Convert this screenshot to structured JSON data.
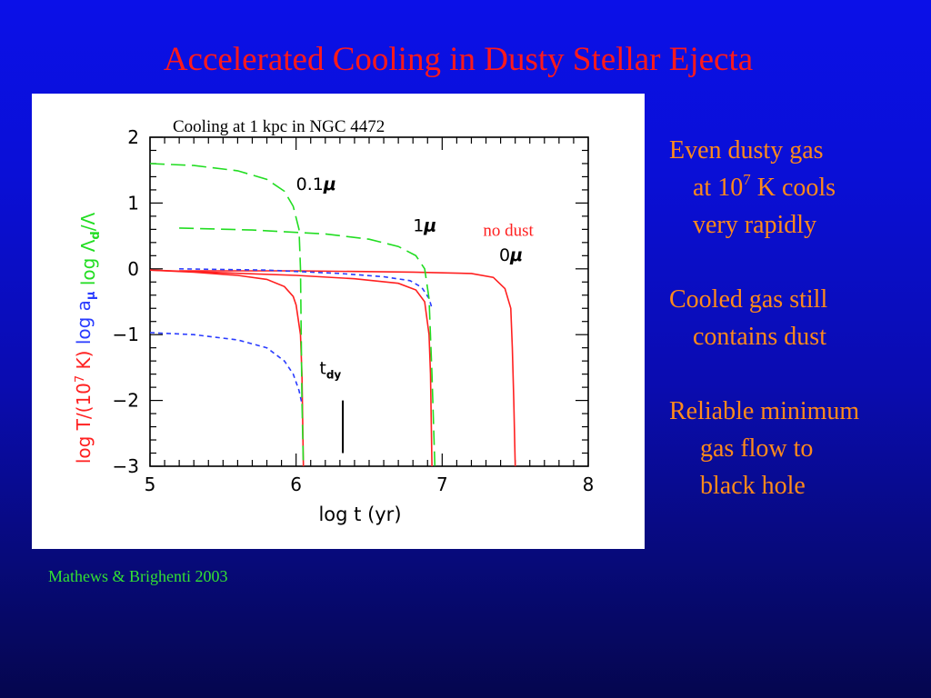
{
  "slide": {
    "title": "Accelerated Cooling in Dusty Stellar Ejecta",
    "citation": "Mathews & Brighenti 2003",
    "bullets": [
      {
        "lines": [
          "Even dusty gas",
          "at 10",
          "very rapidly"
        ],
        "sup": "7",
        "sup_tail": " K cools"
      },
      {
        "lines": [
          "Cooled gas still",
          "contains dust"
        ]
      },
      {
        "lines": [
          "Reliable minimum",
          "gas flow to",
          "black hole"
        ]
      }
    ],
    "colors": {
      "title": "#ff1a1a",
      "bullets": "#ff8a1a",
      "citation": "#33e033",
      "background_top": "#0b10e8",
      "background_bottom": "#05064e"
    }
  },
  "chart_data": {
    "type": "line",
    "title": "Cooling at 1 kpc in NGC 4472",
    "xlabel": "log t (yr)",
    "ylabel_parts": [
      {
        "text": "log T/(10",
        "sup": "7",
        "tail": " K)",
        "color": "#ff2020"
      },
      {
        "text": "log a",
        "sub": "μ",
        "color": "#2a3cff"
      },
      {
        "text": "log Λ",
        "sub": "d",
        "tail": "/Λ",
        "color": "#22dd22"
      }
    ],
    "xlim": [
      5,
      8
    ],
    "ylim": [
      -3,
      2
    ],
    "xticks": [
      "5",
      "6",
      "7",
      "8"
    ],
    "yticks": [
      "2",
      "1",
      "0",
      "−1",
      "−2",
      "−3"
    ],
    "colors": {
      "temperature": "#ff2020",
      "grain_size": "#2a3cff",
      "dust_cooling": "#22dd22"
    },
    "series": [
      {
        "label": "0.1μ T",
        "kind": "temperature",
        "style": "solid",
        "points": [
          [
            5.0,
            -0.02
          ],
          [
            5.3,
            -0.05
          ],
          [
            5.6,
            -0.1
          ],
          [
            5.8,
            -0.16
          ],
          [
            5.92,
            -0.27
          ],
          [
            5.98,
            -0.42
          ],
          [
            6.0,
            -0.55
          ],
          [
            6.03,
            -1.0
          ],
          [
            6.04,
            -1.6
          ],
          [
            6.05,
            -3.0
          ]
        ]
      },
      {
        "label": "1μ T",
        "kind": "temperature",
        "style": "solid",
        "points": [
          [
            5.0,
            -0.02
          ],
          [
            5.5,
            -0.06
          ],
          [
            6.0,
            -0.1
          ],
          [
            6.4,
            -0.15
          ],
          [
            6.7,
            -0.22
          ],
          [
            6.82,
            -0.32
          ],
          [
            6.88,
            -0.5
          ],
          [
            6.91,
            -1.0
          ],
          [
            6.92,
            -1.6
          ],
          [
            6.93,
            -3.0
          ]
        ]
      },
      {
        "label": "0μ T",
        "kind": "temperature",
        "style": "solid",
        "points": [
          [
            5.2,
            -0.03
          ],
          [
            6.0,
            -0.03
          ],
          [
            6.8,
            -0.05
          ],
          [
            7.2,
            -0.07
          ],
          [
            7.35,
            -0.13
          ],
          [
            7.43,
            -0.3
          ],
          [
            7.47,
            -0.6
          ],
          [
            7.48,
            -1.2
          ],
          [
            7.49,
            -2.0
          ],
          [
            7.5,
            -3.0
          ]
        ]
      },
      {
        "label": "0.1μ a",
        "kind": "grain_size",
        "style": "dotted",
        "points": [
          [
            5.0,
            -0.97
          ],
          [
            5.3,
            -1.0
          ],
          [
            5.6,
            -1.08
          ],
          [
            5.8,
            -1.2
          ],
          [
            5.92,
            -1.4
          ],
          [
            5.98,
            -1.6
          ],
          [
            6.02,
            -1.85
          ],
          [
            6.04,
            -2.05
          ]
        ]
      },
      {
        "label": "1μ a",
        "kind": "grain_size",
        "style": "dotted",
        "points": [
          [
            5.2,
            0.0
          ],
          [
            5.8,
            -0.02
          ],
          [
            6.3,
            -0.07
          ],
          [
            6.6,
            -0.12
          ],
          [
            6.78,
            -0.18
          ],
          [
            6.86,
            -0.28
          ],
          [
            6.91,
            -0.45
          ],
          [
            6.93,
            -0.6
          ]
        ]
      },
      {
        "label": "0.1μ Λd/Λ",
        "kind": "dust_cooling",
        "style": "dashed",
        "points": [
          [
            5.0,
            1.6
          ],
          [
            5.3,
            1.57
          ],
          [
            5.6,
            1.49
          ],
          [
            5.8,
            1.36
          ],
          [
            5.92,
            1.18
          ],
          [
            5.98,
            0.95
          ],
          [
            6.02,
            0.6
          ],
          [
            6.03,
            0.0
          ],
          [
            6.04,
            -2.0
          ],
          [
            6.05,
            -3.0
          ]
        ]
      },
      {
        "label": "1μ Λd/Λ",
        "kind": "dust_cooling",
        "style": "dashed",
        "points": [
          [
            5.2,
            0.62
          ],
          [
            5.7,
            0.59
          ],
          [
            6.2,
            0.53
          ],
          [
            6.5,
            0.45
          ],
          [
            6.7,
            0.34
          ],
          [
            6.82,
            0.2
          ],
          [
            6.88,
            0.0
          ],
          [
            6.91,
            -0.45
          ],
          [
            6.93,
            -1.6
          ],
          [
            6.95,
            -3.0
          ]
        ]
      }
    ],
    "annotations": [
      {
        "text": "0.1",
        "suffix": "μ",
        "x": 6.0,
        "y": 1.2,
        "color": "#000000"
      },
      {
        "text": "1",
        "suffix": "μ",
        "x": 6.8,
        "y": 0.57,
        "color": "#000000"
      },
      {
        "text": "no dust",
        "x": 7.28,
        "y": 0.5,
        "color": "#ff2020"
      },
      {
        "text": "0",
        "suffix": "μ",
        "x": 7.39,
        "y": 0.12,
        "color": "#000000"
      },
      {
        "text": "t",
        "sub": "dy",
        "x": 6.16,
        "y": -1.6,
        "color": "#000000"
      }
    ],
    "tdy_marker": {
      "x": 6.32,
      "y_from": -2.0,
      "y_to": -2.8
    }
  }
}
